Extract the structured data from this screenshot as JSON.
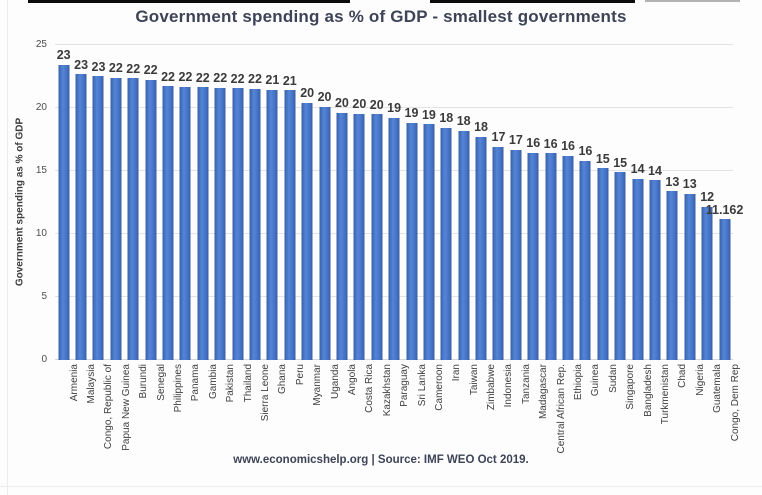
{
  "chart_data": {
    "type": "bar",
    "title": "Government spending as % of GDP - smallest governments",
    "xlabel": "",
    "ylabel": "Government spending as % of GDP",
    "ylim": [
      0,
      25
    ],
    "yticks": [
      0,
      5,
      10,
      15,
      20,
      25
    ],
    "grid": true,
    "legend": false,
    "bar_color": "#4472c4",
    "categories": [
      "Armenia",
      "Malaysia",
      "Congo, Republic of",
      "Papua New Guinea",
      "Burundi",
      "Senegal",
      "Philippines",
      "Panama",
      "Gambia",
      "Pakistan",
      "Thailand",
      "Sierra Leone",
      "Ghana",
      "Peru",
      "Myanmar",
      "Uganda",
      "Angola",
      "Costa Rica",
      "Kazakhstan",
      "Paraguay",
      "Sri Lanka",
      "Cameroon",
      "Iran",
      "Taiwan",
      "Zimbabwe",
      "Indonesia",
      "Tanzania",
      "Madagascar",
      "Central African Rep.",
      "Ethiopia",
      "Guinea",
      "Sudan",
      "Singapore",
      "Bangladesh",
      "Turkmenistan",
      "Chad",
      "Nigeria",
      "Guatemala",
      "Congo, Dem Rep"
    ],
    "values": [
      23.43,
      22.66,
      22.54,
      22.42,
      22.35,
      22.23,
      21.72,
      21.7,
      21.65,
      21.6,
      21.55,
      21.52,
      21.45,
      21.4,
      20.42,
      20.1,
      19.62,
      19.55,
      19.5,
      19.24,
      18.84,
      18.7,
      18.42,
      18.2,
      17.7,
      16.93,
      16.7,
      16.44,
      16.4,
      16.2,
      15.8,
      15.2,
      14.9,
      14.4,
      14.28,
      13.4,
      13.2,
      12.15,
      11.162
    ],
    "value_labels": [
      "23",
      "23",
      "23",
      "22",
      "22",
      "22",
      "22",
      "22",
      "22",
      "22",
      "22",
      "22",
      "21",
      "21",
      "20",
      "20",
      "20",
      "20",
      "20",
      "19",
      "19",
      "19",
      "18",
      "18",
      "18",
      "17",
      "17",
      "16",
      "16",
      "16",
      "16",
      "15",
      "15",
      "14",
      "14",
      "13",
      "13",
      "12",
      "11.162"
    ]
  },
  "footer": {
    "text": "www.economicshelp.org | Source: IMF WEO Oct 2019."
  }
}
